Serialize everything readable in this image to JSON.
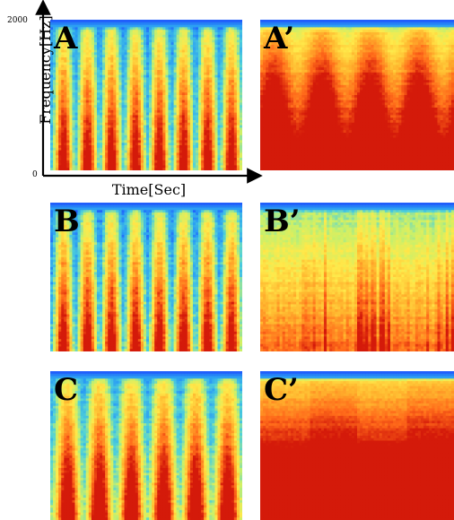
{
  "figure": {
    "panels": [
      {
        "label": "A",
        "kind": "modulated",
        "bursts": 8,
        "noise": 0.55,
        "bg": 0.3
      },
      {
        "label": "A’",
        "kind": "banded",
        "bursts": 4,
        "noise": 0.4,
        "bg": 0.72
      },
      {
        "label": "B",
        "kind": "modulated",
        "bursts": 8,
        "noise": 0.6,
        "bg": 0.28
      },
      {
        "label": "B’",
        "kind": "patchy",
        "bursts": 6,
        "noise": 0.5,
        "bg": 0.42
      },
      {
        "label": "C",
        "kind": "modulated",
        "bursts": 6,
        "noise": 0.55,
        "bg": 0.4
      },
      {
        "label": "C’",
        "kind": "flat",
        "bursts": 4,
        "noise": 0.35,
        "bg": 0.7
      }
    ],
    "axes": {
      "y_label": "Frequency[Hz]",
      "y_max_tick": "2000",
      "y_min_tick": "0",
      "x_label": "Time[Sec]"
    },
    "colormap": [
      "#1a3cff",
      "#2a9df4",
      "#4fd1d9",
      "#c8f06a",
      "#ffe94a",
      "#ffb52e",
      "#ff6a1a",
      "#d41a0a"
    ]
  }
}
